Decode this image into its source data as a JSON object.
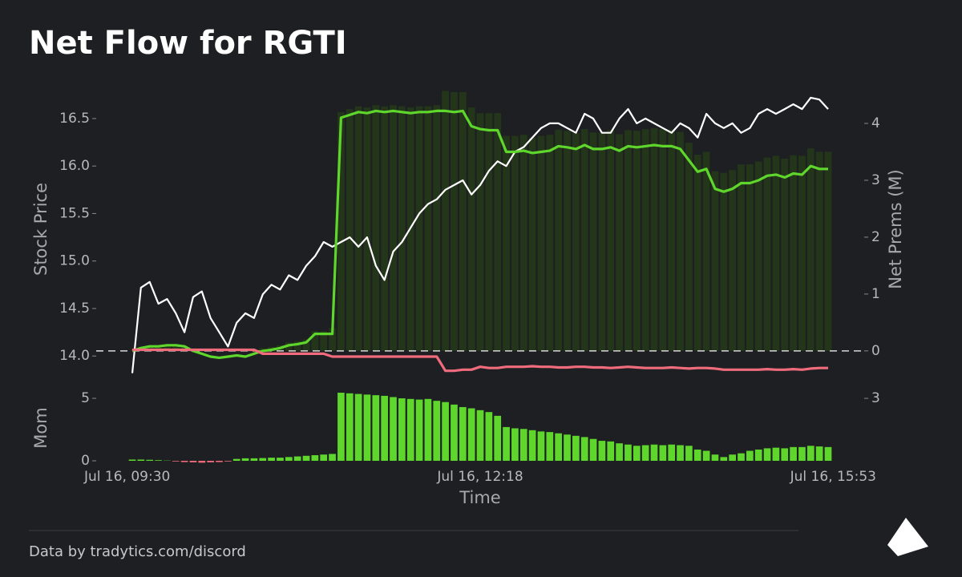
{
  "title": "Net Flow for RGTI",
  "footer": "Data by tradytics.com/discord",
  "chart_data": [
    {
      "type": "line",
      "ylabel": "Stock Price",
      "y2label": "Net Prems (M)",
      "ylim": [
        13.85,
        16.82
      ],
      "yticks": [
        {
          "value": 14,
          "label": "14.0"
        },
        14.5,
        {
          "value": 15,
          "label": "15.0"
        },
        15.5,
        {
          "value": 16,
          "label": "16.0"
        },
        16.5
      ],
      "y2lim": [
        -0.34,
        4.62
      ],
      "y2ticks": [
        0,
        1,
        2,
        3,
        4
      ],
      "zero_line": true,
      "series": [
        {
          "type": "bar",
          "axis": "y2",
          "color": "#24361a",
          "values": [
            0,
            0.03,
            0.06,
            0.06,
            0.08,
            0.08,
            0.06,
            0,
            0,
            0,
            0,
            0,
            0,
            0,
            0,
            0.05,
            0.07,
            0.1,
            0.15,
            0.17,
            0.2,
            0.35,
            0.35,
            0.4,
            4.2,
            4.25,
            4.3,
            4.28,
            4.32,
            4.3,
            4.32,
            4.3,
            4.28,
            4.3,
            4.3,
            4.32,
            4.57,
            4.55,
            4.55,
            4.28,
            4.18,
            4.18,
            4.18,
            3.78,
            3.78,
            3.8,
            3.75,
            3.78,
            3.8,
            3.89,
            3.87,
            3.83,
            3.9,
            3.84,
            3.84,
            3.88,
            3.81,
            3.88,
            3.87,
            3.9,
            3.92,
            3.9,
            3.89,
            3.85,
            3.66,
            3.45,
            3.5,
            3.16,
            3.13,
            3.18,
            3.28,
            3.28,
            3.33,
            3.4,
            3.43,
            3.38,
            3.44,
            3.43,
            3.56,
            3.5,
            3.5
          ]
        },
        {
          "type": "line",
          "axis": "y",
          "color": "#ffffff",
          "values": [
            13.82,
            14.72,
            14.78,
            14.55,
            14.6,
            14.45,
            14.25,
            14.62,
            14.68,
            14.4,
            14.25,
            14.1,
            14.35,
            14.45,
            14.4,
            14.65,
            14.75,
            14.7,
            14.85,
            14.8,
            14.95,
            15.05,
            15.2,
            15.15,
            15.2,
            15.25,
            15.15,
            15.25,
            14.95,
            14.8,
            15.1,
            15.2,
            15.35,
            15.5,
            15.6,
            15.65,
            15.75,
            15.8,
            15.85,
            15.7,
            15.8,
            15.95,
            16.05,
            16.0,
            16.15,
            16.2,
            16.3,
            16.4,
            16.45,
            16.45,
            16.4,
            16.35,
            16.55,
            16.5,
            16.35,
            16.35,
            16.5,
            16.6,
            16.45,
            16.5,
            16.45,
            16.4,
            16.35,
            16.45,
            16.4,
            16.3,
            16.55,
            16.45,
            16.4,
            16.45,
            16.35,
            16.4,
            16.55,
            16.6,
            16.55,
            16.6,
            16.65,
            16.6,
            16.72,
            16.7,
            16.6
          ]
        },
        {
          "type": "line",
          "axis": "y2",
          "color": "#5ed62b",
          "values": [
            0,
            0.05,
            0.08,
            0.08,
            0.1,
            0.1,
            0.08,
            0,
            -0.05,
            -0.1,
            -0.12,
            -0.1,
            -0.08,
            -0.1,
            -0.05,
            0,
            0.02,
            0.05,
            0.1,
            0.12,
            0.15,
            0.3,
            0.3,
            0.3,
            4.1,
            4.15,
            4.2,
            4.18,
            4.22,
            4.2,
            4.22,
            4.2,
            4.18,
            4.2,
            4.2,
            4.22,
            4.22,
            4.2,
            4.22,
            3.95,
            3.9,
            3.88,
            3.88,
            3.5,
            3.5,
            3.52,
            3.48,
            3.5,
            3.52,
            3.6,
            3.58,
            3.55,
            3.62,
            3.55,
            3.55,
            3.58,
            3.52,
            3.6,
            3.58,
            3.6,
            3.62,
            3.6,
            3.6,
            3.55,
            3.35,
            3.15,
            3.2,
            2.85,
            2.8,
            2.85,
            2.95,
            2.95,
            3.0,
            3.08,
            3.1,
            3.05,
            3.12,
            3.1,
            3.25,
            3.2,
            3.2
          ]
        },
        {
          "type": "line",
          "axis": "y2",
          "color": "#f06b7c",
          "values": [
            0.02,
            0.02,
            0.02,
            0.02,
            0.02,
            0.02,
            0.02,
            0.02,
            0.02,
            0.02,
            0.02,
            0.02,
            0.02,
            0.02,
            0.02,
            -0.05,
            -0.05,
            -0.05,
            -0.05,
            -0.05,
            -0.05,
            -0.05,
            -0.05,
            -0.1,
            -0.1,
            -0.1,
            -0.1,
            -0.1,
            -0.1,
            -0.1,
            -0.1,
            -0.1,
            -0.1,
            -0.1,
            -0.1,
            -0.1,
            -0.35,
            -0.35,
            -0.33,
            -0.33,
            -0.28,
            -0.3,
            -0.3,
            -0.28,
            -0.28,
            -0.28,
            -0.27,
            -0.28,
            -0.28,
            -0.29,
            -0.29,
            -0.28,
            -0.28,
            -0.29,
            -0.29,
            -0.3,
            -0.29,
            -0.28,
            -0.29,
            -0.3,
            -0.3,
            -0.3,
            -0.29,
            -0.3,
            -0.31,
            -0.3,
            -0.3,
            -0.31,
            -0.33,
            -0.33,
            -0.33,
            -0.33,
            -0.33,
            -0.32,
            -0.33,
            -0.33,
            -0.32,
            -0.33,
            -0.31,
            -0.3,
            -0.3
          ]
        }
      ]
    },
    {
      "type": "bar",
      "ylabel": "Mom",
      "xlabel": "Time",
      "ylim": [
        -0.32,
        5.58
      ],
      "yticks": [
        0,
        5
      ],
      "y2lim": [
        -0.19,
        3.35
      ],
      "y2ticks": [
        3
      ],
      "color": "#5ed62b",
      "negative_color": "#f06b7c",
      "categories": [
        "Jul 16, 09:30",
        null,
        null,
        null,
        null,
        null,
        null,
        null,
        null,
        null,
        null,
        null,
        null,
        null,
        null,
        null,
        null,
        null,
        null,
        null,
        null,
        null,
        null,
        null,
        null,
        null,
        null,
        null,
        null,
        null,
        null,
        null,
        null,
        null,
        null,
        null,
        null,
        null,
        null,
        null,
        "Jul 16, 12:18",
        null,
        null,
        null,
        null,
        null,
        null,
        null,
        null,
        null,
        null,
        null,
        null,
        null,
        null,
        null,
        null,
        null,
        null,
        null,
        null,
        null,
        null,
        null,
        null,
        null,
        null,
        null,
        null,
        null,
        null,
        null,
        null,
        null,
        null,
        null,
        null,
        null,
        null,
        null,
        "Jul 16, 15:53"
      ],
      "values": [
        0.1,
        0.1,
        0.08,
        0.05,
        0.02,
        -0.05,
        -0.1,
        -0.12,
        -0.15,
        -0.12,
        -0.1,
        -0.05,
        0.15,
        0.2,
        0.2,
        0.22,
        0.25,
        0.25,
        0.3,
        0.35,
        0.4,
        0.45,
        0.5,
        0.55,
        5.45,
        5.4,
        5.35,
        5.3,
        5.25,
        5.2,
        5.1,
        5.0,
        4.95,
        4.9,
        4.95,
        4.8,
        4.7,
        4.5,
        4.3,
        4.2,
        4.05,
        3.9,
        3.6,
        2.7,
        2.6,
        2.55,
        2.45,
        2.35,
        2.3,
        2.2,
        2.1,
        2.0,
        1.9,
        1.75,
        1.6,
        1.55,
        1.4,
        1.3,
        1.2,
        1.25,
        1.3,
        1.25,
        1.3,
        1.25,
        1.2,
        0.9,
        0.8,
        0.5,
        0.3,
        0.5,
        0.6,
        0.8,
        0.9,
        1.0,
        1.05,
        1.0,
        1.1,
        1.1,
        1.2,
        1.15,
        1.1
      ]
    }
  ]
}
